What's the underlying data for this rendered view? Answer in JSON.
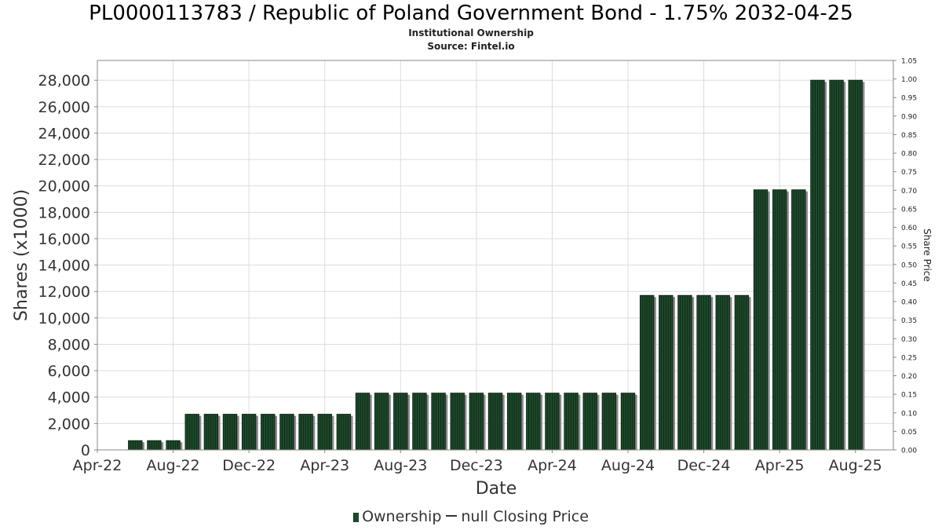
{
  "header": {
    "title": "PL0000113783 / Republic of Poland Government Bond - 1.75% 2032-04-25",
    "subtitle": "Institutional Ownership",
    "source": "Source: Fintel.io"
  },
  "legend": {
    "ownership_label": "Ownership",
    "price_label": "null Closing Price"
  },
  "colors": {
    "bar_fill": "#1e4a2b",
    "bar_dark": "#0d2414",
    "bar_shadow": "#8a8a8a",
    "grid": "#dddddd",
    "axis": "#888888"
  },
  "chart_data": {
    "type": "bar",
    "title": "PL0000113783 / Republic of Poland Government Bond - 1.75% 2032-04-25",
    "xlabel": "Date",
    "ylabel": "Shares (x1000)",
    "y2label": "Share Price",
    "ylim": [
      0,
      29500
    ],
    "y2lim": [
      0,
      1.05
    ],
    "yticks": [
      0,
      2000,
      4000,
      6000,
      8000,
      10000,
      12000,
      14000,
      16000,
      18000,
      20000,
      22000,
      24000,
      26000,
      28000
    ],
    "yticklabels": [
      "0",
      "2,000",
      "4,000",
      "6,000",
      "8,000",
      "10,000",
      "12,000",
      "14,000",
      "16,000",
      "18,000",
      "20,000",
      "22,000",
      "24,000",
      "26,000",
      "28,000"
    ],
    "y2ticks": [
      "0.00",
      "0.05",
      "0.10",
      "0.15",
      "0.20",
      "0.25",
      "0.30",
      "0.35",
      "0.40",
      "0.45",
      "0.50",
      "0.55",
      "0.60",
      "0.65",
      "0.70",
      "0.75",
      "0.80",
      "0.85",
      "0.90",
      "0.95",
      "1.00",
      "1.05"
    ],
    "xtick_labels": [
      "Apr-22",
      "Aug-22",
      "Dec-22",
      "Apr-23",
      "Aug-23",
      "Dec-23",
      "Apr-24",
      "Aug-24",
      "Dec-24",
      "Apr-25",
      "Aug-25"
    ],
    "xlim": [
      "2022-04",
      "2025-10"
    ],
    "grid": true,
    "legend_position": "bottom",
    "series": [
      {
        "name": "Ownership",
        "points": [
          {
            "x": "2022-06",
            "y": 700
          },
          {
            "x": "2022-07",
            "y": 700
          },
          {
            "x": "2022-08",
            "y": 700
          },
          {
            "x": "2022-09",
            "y": 2700
          },
          {
            "x": "2022-10",
            "y": 2700
          },
          {
            "x": "2022-11",
            "y": 2700
          },
          {
            "x": "2022-12",
            "y": 2700
          },
          {
            "x": "2023-01",
            "y": 2700
          },
          {
            "x": "2023-02",
            "y": 2700
          },
          {
            "x": "2023-03",
            "y": 2700
          },
          {
            "x": "2023-04",
            "y": 2700
          },
          {
            "x": "2023-05",
            "y": 2700
          },
          {
            "x": "2023-06",
            "y": 4300
          },
          {
            "x": "2023-07",
            "y": 4300
          },
          {
            "x": "2023-08",
            "y": 4300
          },
          {
            "x": "2023-09",
            "y": 4300
          },
          {
            "x": "2023-10",
            "y": 4300
          },
          {
            "x": "2023-11",
            "y": 4300
          },
          {
            "x": "2023-12",
            "y": 4300
          },
          {
            "x": "2024-01",
            "y": 4300
          },
          {
            "x": "2024-02",
            "y": 4300
          },
          {
            "x": "2024-03",
            "y": 4300
          },
          {
            "x": "2024-04",
            "y": 4300
          },
          {
            "x": "2024-05",
            "y": 4300
          },
          {
            "x": "2024-06",
            "y": 4300
          },
          {
            "x": "2024-07",
            "y": 4300
          },
          {
            "x": "2024-08",
            "y": 4300
          },
          {
            "x": "2024-09",
            "y": 11700
          },
          {
            "x": "2024-10",
            "y": 11700
          },
          {
            "x": "2024-11",
            "y": 11700
          },
          {
            "x": "2024-12",
            "y": 11700
          },
          {
            "x": "2025-01",
            "y": 11700
          },
          {
            "x": "2025-02",
            "y": 11700
          },
          {
            "x": "2025-03",
            "y": 19700
          },
          {
            "x": "2025-04",
            "y": 19700
          },
          {
            "x": "2025-05",
            "y": 19700
          },
          {
            "x": "2025-06",
            "y": 28000
          },
          {
            "x": "2025-07",
            "y": 28000
          },
          {
            "x": "2025-08",
            "y": 28000
          }
        ]
      },
      {
        "name": "null Closing Price",
        "points": []
      }
    ]
  }
}
